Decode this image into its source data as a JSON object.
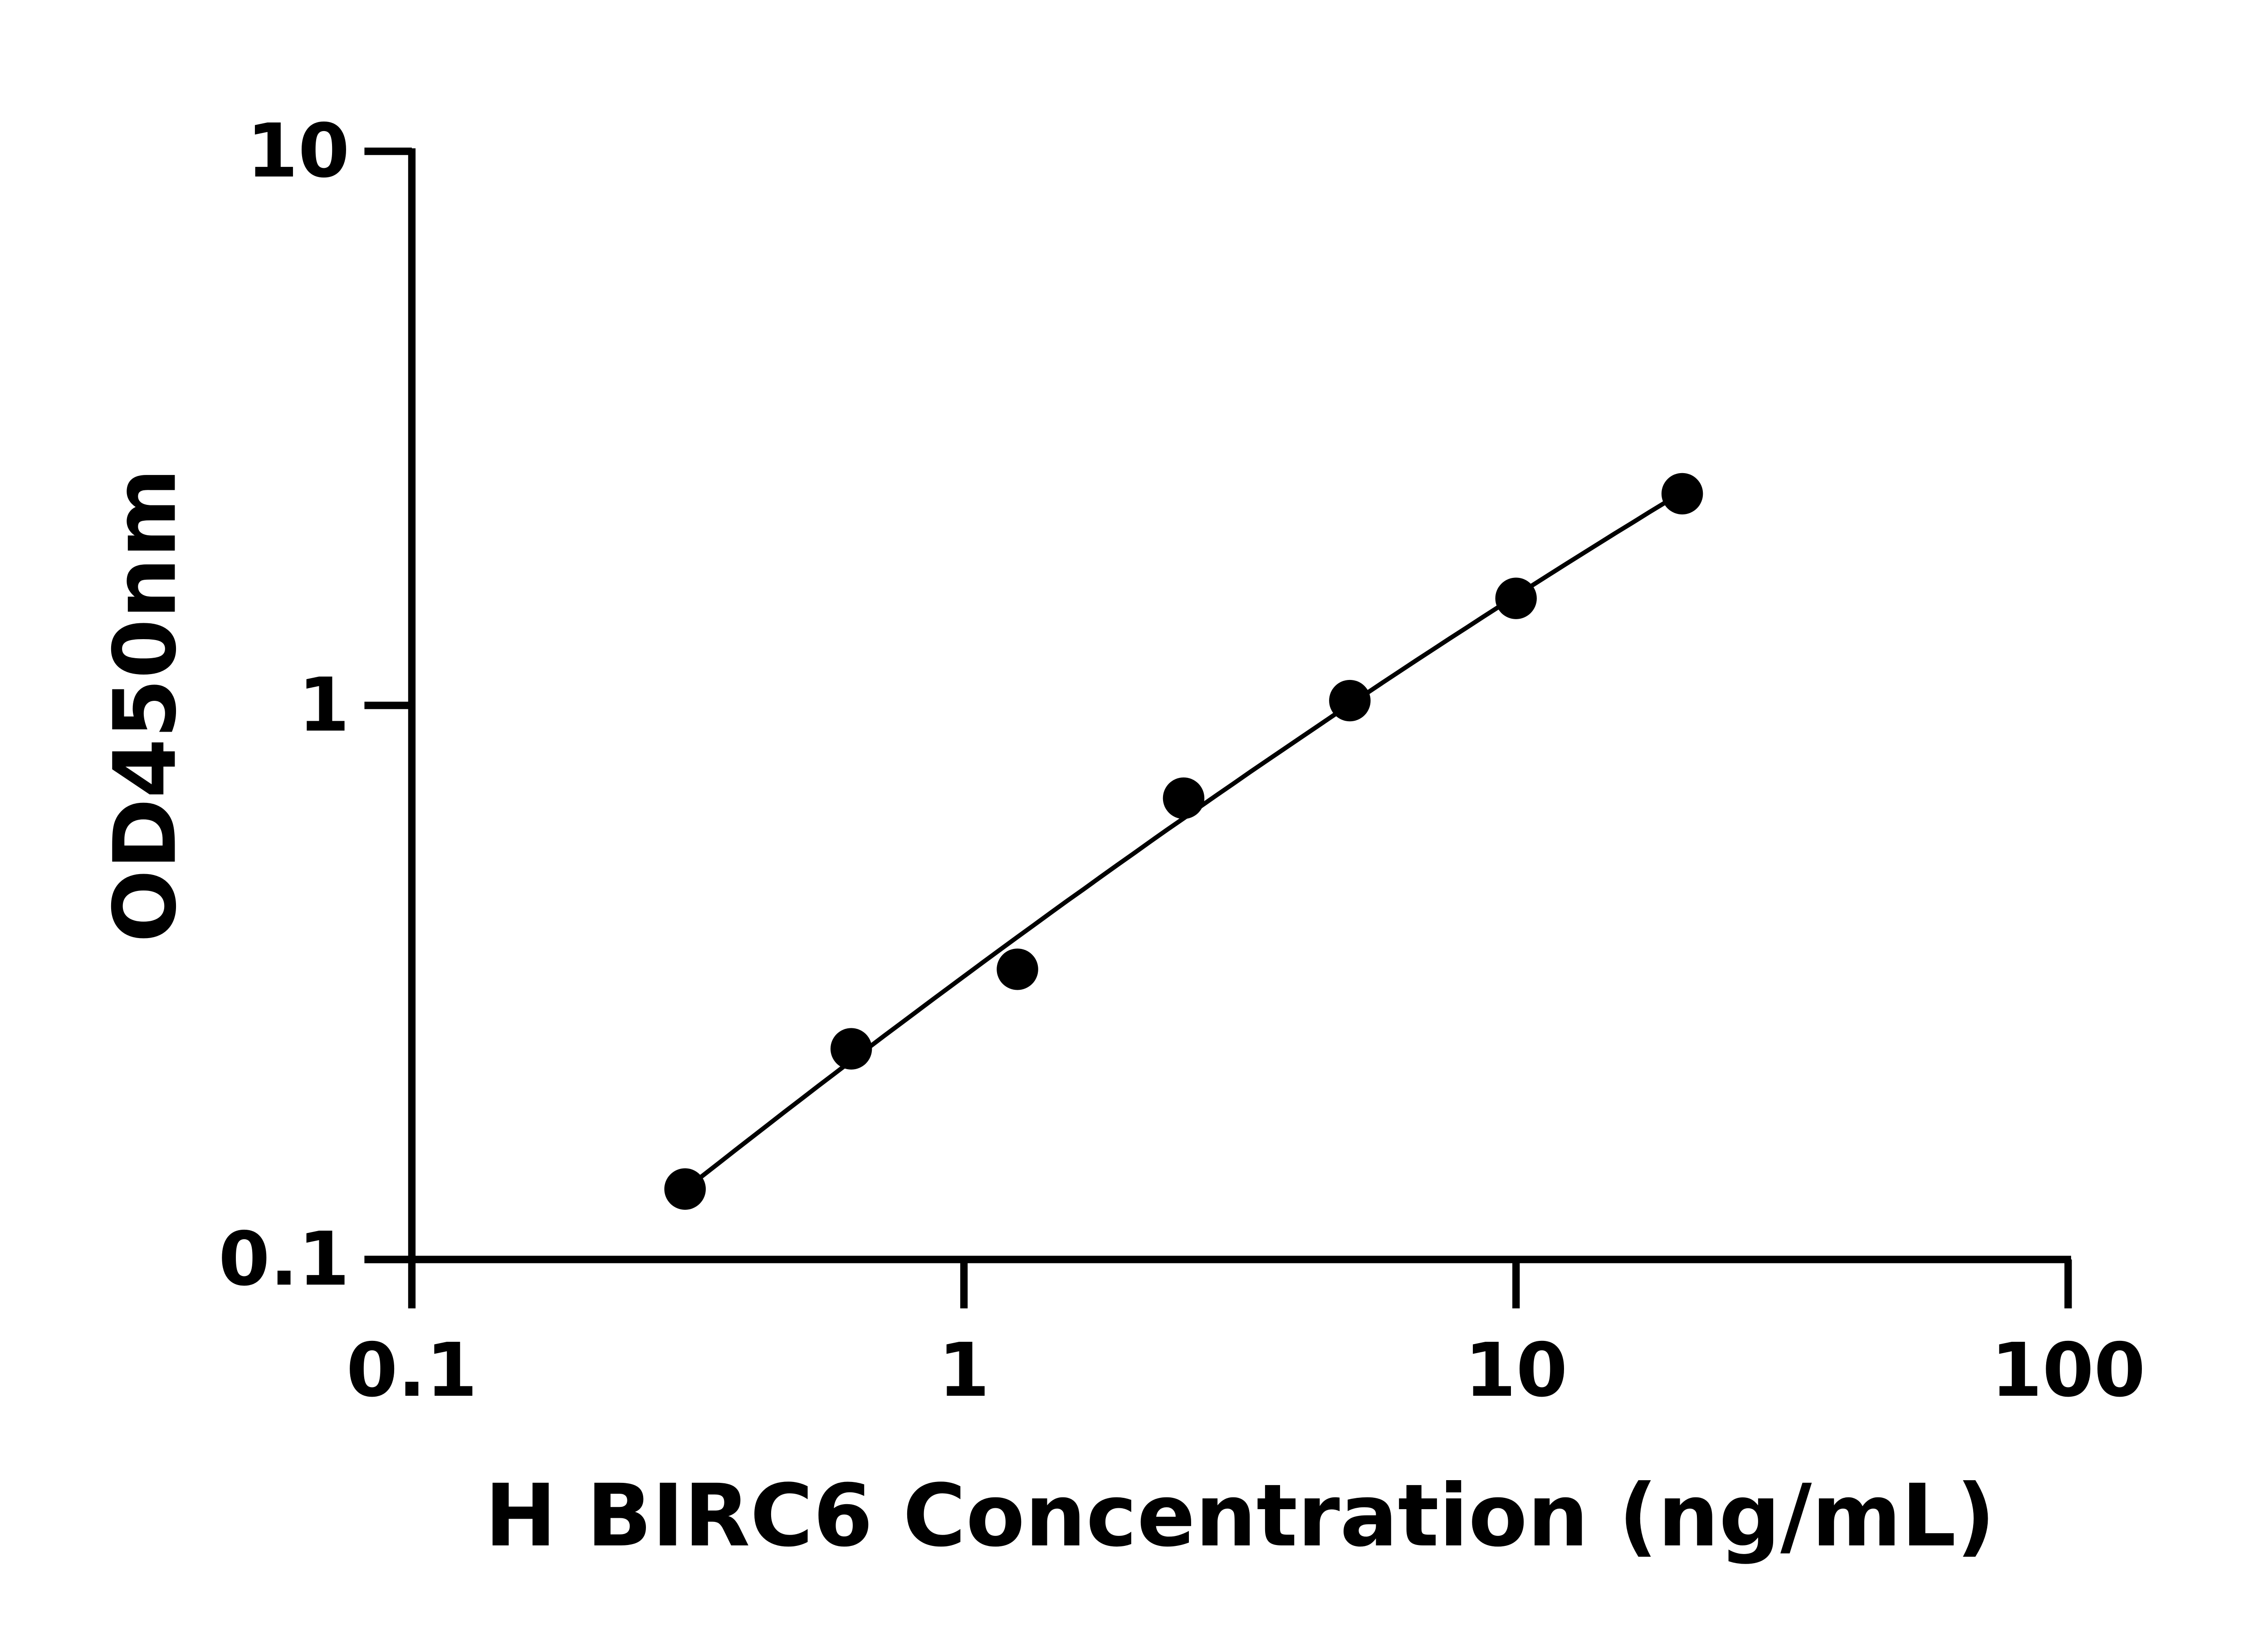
{
  "chart_data": {
    "type": "scatter",
    "title": "",
    "xlabel": "H BIRC6 Concentration (ng/mL)",
    "ylabel": "OD450nm",
    "xscale": "log",
    "yscale": "log",
    "xlim": [
      0.1,
      100
    ],
    "ylim": [
      0.1,
      10
    ],
    "xticks": [
      "0.1",
      "1",
      "10",
      "100"
    ],
    "yticks": [
      "10",
      "1",
      "0.1"
    ],
    "grid": false,
    "legend": "none",
    "fit_line": true,
    "x": [
      0.3125,
      0.625,
      1.25,
      2.5,
      5,
      10,
      20
    ],
    "y": [
      0.134,
      0.24,
      0.334,
      0.68,
      1.02,
      1.56,
      2.41
    ],
    "color": "#000000"
  }
}
